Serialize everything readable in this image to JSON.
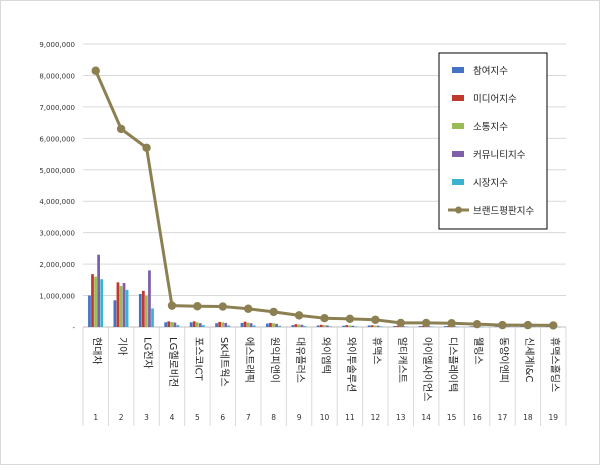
{
  "chart_data": {
    "type": "bar",
    "title": "",
    "xlabel": "",
    "ylabel": "",
    "ylim": [
      0,
      9000000
    ],
    "y_ticks": [
      "-",
      "1,000,000",
      "2,000,000",
      "3,000,000",
      "4,000,000",
      "5,000,000",
      "6,000,000",
      "7,000,000",
      "8,000,000",
      "9,000,000"
    ],
    "y_tick_values": [
      0,
      1000000,
      2000000,
      3000000,
      4000000,
      5000000,
      6000000,
      7000000,
      8000000,
      9000000
    ],
    "grid": true,
    "legend_position": "top-right",
    "categories": [
      "현대차",
      "기아",
      "LG전자",
      "LG헬로비전",
      "포스코ICT",
      "SK네트웍스",
      "에스트래픽",
      "원익피앤이",
      "대유플러스",
      "와이엠텍",
      "와이투솔루션",
      "휴맥스",
      "알티캐스트",
      "아이엘사이언스",
      "디스플레이텍",
      "웰링스",
      "동양이엔피",
      "신세계I&C",
      "휴맥스홀딩스"
    ],
    "ranks": [
      "1",
      "2",
      "3",
      "4",
      "5",
      "6",
      "7",
      "8",
      "9",
      "10",
      "11",
      "12",
      "13",
      "14",
      "15",
      "16",
      "17",
      "18",
      "19"
    ],
    "series": [
      {
        "name": "참여지수",
        "kind": "bar",
        "color": "#4472c4",
        "values": [
          1000000,
          850000,
          1050000,
          150000,
          150000,
          120000,
          130000,
          110000,
          60000,
          50000,
          40000,
          50000,
          30000,
          30000,
          30000,
          20000,
          20000,
          20000,
          15000
        ]
      },
      {
        "name": "미디어지수",
        "kind": "bar",
        "color": "#c0392b",
        "values": [
          1680000,
          1420000,
          1150000,
          180000,
          180000,
          160000,
          170000,
          130000,
          90000,
          70000,
          60000,
          55000,
          35000,
          35000,
          35000,
          25000,
          25000,
          25000,
          20000
        ]
      },
      {
        "name": "소통지수",
        "kind": "bar",
        "color": "#9bbb59",
        "values": [
          1600000,
          1300000,
          1000000,
          160000,
          150000,
          150000,
          140000,
          120000,
          80000,
          60000,
          50000,
          45000,
          30000,
          30000,
          30000,
          20000,
          20000,
          20000,
          15000
        ]
      },
      {
        "name": "커뮤니티지수",
        "kind": "bar",
        "color": "#7f5fa8",
        "values": [
          2300000,
          1400000,
          1800000,
          140000,
          120000,
          130000,
          120000,
          100000,
          70000,
          50000,
          40000,
          40000,
          25000,
          25000,
          25000,
          15000,
          15000,
          15000,
          12000
        ]
      },
      {
        "name": "시장지수",
        "kind": "bar",
        "color": "#3bb2d0",
        "values": [
          1520000,
          1180000,
          590000,
          60000,
          60000,
          50000,
          50000,
          40000,
          30000,
          20000,
          20000,
          20000,
          15000,
          15000,
          15000,
          10000,
          10000,
          10000,
          8000
        ]
      },
      {
        "name": "브랜드평판지수",
        "kind": "line",
        "color": "#8c8052",
        "values": [
          8150000,
          6300000,
          5700000,
          680000,
          660000,
          650000,
          580000,
          480000,
          370000,
          280000,
          260000,
          230000,
          130000,
          130000,
          120000,
          90000,
          60000,
          60000,
          50000
        ]
      }
    ]
  }
}
